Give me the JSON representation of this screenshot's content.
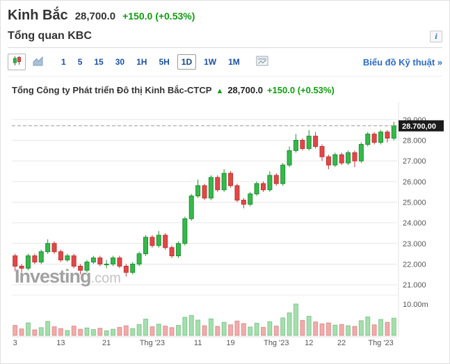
{
  "header": {
    "title": "Kinh Bắc",
    "price": "28,700.0",
    "change": "+150.0",
    "change_pct": "(+0.53%)"
  },
  "section": {
    "title": "Tổng quan KBC",
    "info_icon": "i"
  },
  "toolbar": {
    "chart_types": [
      {
        "icon": "candlestick-chart-icon",
        "selected": true
      },
      {
        "icon": "area-chart-icon",
        "selected": false
      }
    ],
    "timeframes": [
      {
        "label": "1",
        "selected": false
      },
      {
        "label": "5",
        "selected": false
      },
      {
        "label": "15",
        "selected": false
      },
      {
        "label": "30",
        "selected": false
      },
      {
        "label": "1H",
        "selected": false
      },
      {
        "label": "5H",
        "selected": false
      },
      {
        "label": "1D",
        "selected": true
      },
      {
        "label": "1W",
        "selected": false
      },
      {
        "label": "1M",
        "selected": false
      }
    ],
    "technical_chart_link": "Biểu đồ Kỹ thuật »"
  },
  "chart": {
    "instrument_title": "Tổng Công ty Phát triển Đô thị Kinh Bắc-CTCP",
    "arrow": "▲",
    "price": "28,700.0",
    "change": "+150.0",
    "change_pct": "(+0.53%)",
    "current_price_label": "28.700,00",
    "watermark_bold": "Investing",
    "watermark_light": ".com"
  },
  "colors": {
    "up": "#35b94b",
    "up_border": "#1f8f32",
    "down": "#e14848",
    "down_border": "#bf3434",
    "grid": "#e6e6e6",
    "axis_text": "#555555",
    "green": "#0e9c10",
    "link": "#2f6bc4",
    "dashed": "#999999",
    "price_label_bg": "#1c1c1c"
  },
  "chart_data": {
    "type": "candlestick",
    "title": "Tổng Công ty Phát triển Đô thị Kinh Bắc-CTCP",
    "legend": [],
    "grid": true,
    "y_axis_side": "right",
    "y_range": [
      20.7,
      29.3
    ],
    "current_price": 28.7,
    "y_ticks": [
      {
        "value": 29,
        "label": "29.000"
      },
      {
        "value": 28,
        "label": "28.000"
      },
      {
        "value": 27,
        "label": "27.000"
      },
      {
        "value": 26,
        "label": "26.000"
      },
      {
        "value": 25,
        "label": "25.000"
      },
      {
        "value": 24,
        "label": "24.000"
      },
      {
        "value": 23,
        "label": "23.000"
      },
      {
        "value": 22,
        "label": "22.000"
      },
      {
        "value": 21,
        "label": "21.000"
      }
    ],
    "x_labels": [
      {
        "index": 0,
        "label": "3"
      },
      {
        "index": 7,
        "label": "13"
      },
      {
        "index": 14,
        "label": "21"
      },
      {
        "index": 21,
        "label": "Thg '23"
      },
      {
        "index": 28,
        "label": "11"
      },
      {
        "index": 33,
        "label": "19"
      },
      {
        "index": 40,
        "label": "Thg '23"
      },
      {
        "index": 45,
        "label": "12"
      },
      {
        "index": 50,
        "label": "22"
      },
      {
        "index": 56,
        "label": "Thg '23"
      }
    ],
    "volume_axis": {
      "tick_value": 10,
      "tick_label": "10.00m",
      "max": 11.5
    },
    "candles_format": [
      "open",
      "high",
      "low",
      "close",
      "volume_millions"
    ],
    "candles": [
      [
        22.4,
        22.5,
        21.65,
        21.9,
        3.2
      ],
      [
        21.9,
        22.0,
        21.6,
        21.8,
        2.1
      ],
      [
        21.8,
        22.5,
        21.7,
        22.4,
        4.0
      ],
      [
        22.4,
        22.5,
        22.0,
        22.1,
        1.8
      ],
      [
        22.1,
        22.7,
        22.0,
        22.6,
        2.5
      ],
      [
        22.6,
        23.2,
        22.5,
        23.0,
        4.5
      ],
      [
        23.0,
        23.1,
        22.5,
        22.6,
        2.8
      ],
      [
        22.6,
        22.7,
        22.1,
        22.2,
        2.2
      ],
      [
        22.2,
        22.5,
        22.1,
        22.4,
        1.6
      ],
      [
        22.4,
        22.5,
        21.8,
        21.9,
        3.0
      ],
      [
        21.9,
        22.0,
        21.5,
        21.7,
        2.0
      ],
      [
        21.7,
        22.2,
        21.6,
        22.1,
        2.4
      ],
      [
        22.1,
        22.4,
        22.0,
        22.3,
        1.9
      ],
      [
        22.3,
        22.4,
        21.9,
        22.0,
        2.3
      ],
      [
        22.0,
        22.2,
        21.8,
        22.0,
        1.5
      ],
      [
        22.0,
        22.4,
        21.9,
        22.3,
        2.0
      ],
      [
        22.3,
        22.4,
        21.8,
        21.9,
        2.6
      ],
      [
        21.9,
        22.0,
        21.4,
        21.6,
        3.1
      ],
      [
        21.6,
        22.1,
        21.5,
        22.0,
        2.2
      ],
      [
        22.0,
        22.6,
        21.9,
        22.5,
        3.5
      ],
      [
        22.5,
        23.4,
        22.4,
        23.3,
        5.2
      ],
      [
        23.3,
        23.4,
        22.8,
        22.9,
        2.8
      ],
      [
        22.9,
        23.6,
        22.8,
        23.4,
        3.6
      ],
      [
        23.4,
        23.5,
        22.7,
        22.8,
        3.0
      ],
      [
        22.8,
        22.9,
        22.3,
        22.4,
        2.5
      ],
      [
        22.4,
        23.1,
        22.3,
        23.0,
        3.2
      ],
      [
        23.0,
        24.3,
        22.9,
        24.2,
        5.8
      ],
      [
        24.2,
        25.4,
        24.1,
        25.3,
        6.4
      ],
      [
        25.3,
        26.1,
        25.2,
        25.8,
        4.9
      ],
      [
        25.8,
        25.9,
        25.1,
        25.2,
        3.1
      ],
      [
        25.2,
        26.3,
        25.1,
        26.2,
        5.3
      ],
      [
        26.2,
        26.3,
        25.5,
        25.6,
        2.9
      ],
      [
        25.6,
        26.6,
        25.5,
        26.4,
        4.2
      ],
      [
        26.4,
        26.5,
        25.7,
        25.8,
        3.4
      ],
      [
        25.8,
        25.9,
        25.0,
        25.1,
        4.6
      ],
      [
        25.1,
        25.2,
        24.7,
        24.9,
        3.8
      ],
      [
        24.9,
        25.5,
        24.8,
        25.4,
        2.7
      ],
      [
        25.4,
        26.0,
        25.3,
        25.9,
        3.9
      ],
      [
        25.9,
        26.0,
        25.5,
        25.6,
        2.6
      ],
      [
        25.6,
        26.5,
        25.5,
        26.3,
        4.4
      ],
      [
        26.3,
        26.4,
        25.8,
        25.9,
        3.0
      ],
      [
        25.9,
        26.9,
        25.8,
        26.8,
        5.6
      ],
      [
        26.8,
        27.7,
        26.7,
        27.5,
        7.2
      ],
      [
        27.5,
        28.3,
        27.4,
        28.0,
        10.0
      ],
      [
        28.0,
        28.1,
        27.5,
        27.6,
        4.8
      ],
      [
        27.6,
        28.5,
        27.5,
        28.2,
        6.1
      ],
      [
        28.2,
        28.4,
        27.6,
        27.7,
        4.3
      ],
      [
        27.7,
        27.8,
        27.0,
        27.2,
        3.7
      ],
      [
        27.2,
        27.3,
        26.6,
        26.8,
        4.0
      ],
      [
        26.8,
        27.4,
        26.7,
        27.3,
        3.3
      ],
      [
        27.3,
        27.4,
        26.8,
        26.9,
        3.5
      ],
      [
        26.9,
        27.5,
        26.8,
        27.4,
        3.1
      ],
      [
        27.4,
        27.5,
        26.7,
        27.0,
        2.9
      ],
      [
        27.0,
        27.9,
        26.9,
        27.8,
        4.7
      ],
      [
        27.8,
        28.4,
        27.7,
        28.3,
        5.9
      ],
      [
        28.3,
        28.4,
        27.8,
        27.9,
        3.4
      ],
      [
        27.9,
        28.5,
        27.8,
        28.4,
        5.1
      ],
      [
        28.4,
        28.5,
        27.9,
        28.1,
        4.2
      ],
      [
        28.1,
        28.9,
        28.0,
        28.7,
        5.5
      ]
    ]
  }
}
